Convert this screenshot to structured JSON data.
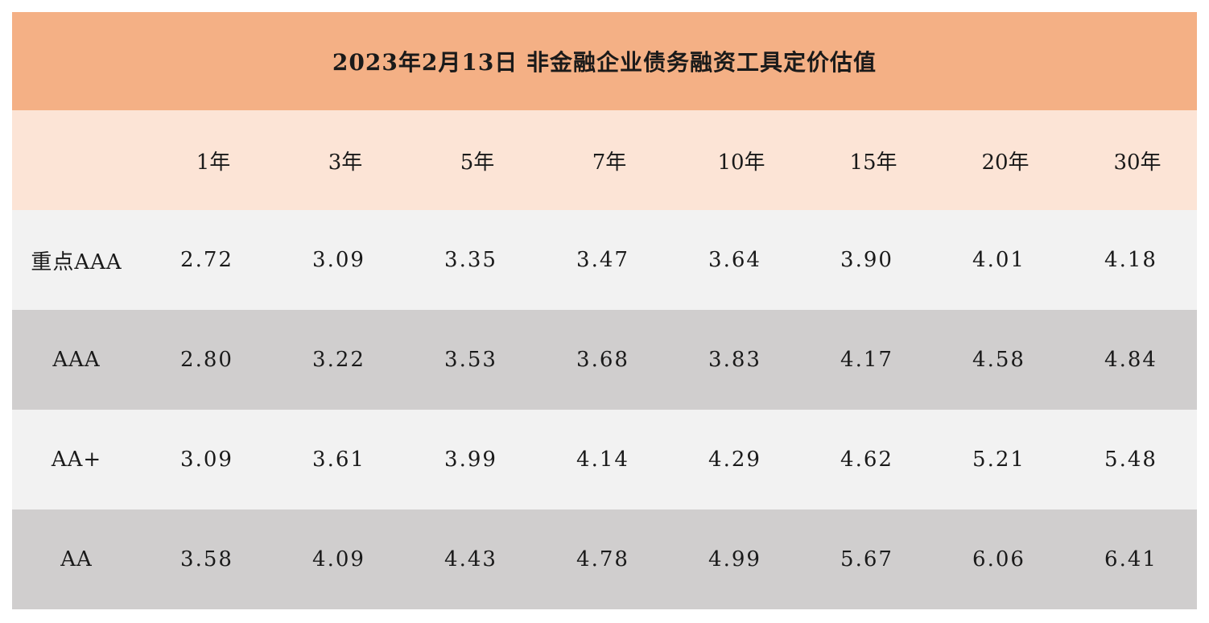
{
  "title": "2023年2月13日  非金融企业债务融资工具定价估值",
  "headers": [
    "",
    "1年",
    "3年",
    "5年",
    "7年",
    "10年",
    "15年",
    "20年",
    "30年"
  ],
  "rows": [
    {
      "label": "重点AAA",
      "values": [
        "2.72",
        "3.09",
        "3.35",
        "3.47",
        "3.64",
        "3.90",
        "4.01",
        "4.18"
      ]
    },
    {
      "label": "AAA",
      "values": [
        "2.80",
        "3.22",
        "3.53",
        "3.68",
        "3.83",
        "4.17",
        "4.58",
        "4.84"
      ]
    },
    {
      "label": "AA+",
      "values": [
        "3.09",
        "3.61",
        "3.99",
        "4.14",
        "4.29",
        "4.62",
        "5.21",
        "5.48"
      ]
    },
    {
      "label": "AA",
      "values": [
        "3.58",
        "4.09",
        "4.43",
        "4.78",
        "4.99",
        "5.67",
        "6.06",
        "6.41"
      ]
    }
  ],
  "colors": {
    "title_bg": "#f4b085",
    "header_bg": "#fce4d6",
    "row_light": "#f2f2f2",
    "row_dark": "#d0cece"
  }
}
